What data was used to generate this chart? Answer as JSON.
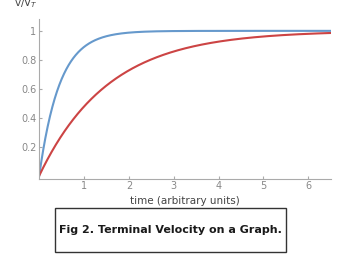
{
  "xlabel": "time (arbitrary units)",
  "xlim": [
    0,
    6.5
  ],
  "ylim": [
    -0.02,
    1.08
  ],
  "xticks": [
    1,
    2,
    3,
    4,
    5,
    6
  ],
  "yticks": [
    0.2,
    0.4,
    0.6,
    0.8,
    1.0
  ],
  "ytick_labels": [
    "0.2",
    "0.4",
    "0.6",
    "0.8",
    "1"
  ],
  "blue_k": 2.2,
  "red_k": 0.65,
  "blue_color": "#6699cc",
  "red_color": "#cc4444",
  "caption": "Fig 2. Terminal Velocity on a Graph.",
  "background_color": "#ffffff",
  "axis_color": "#aaaaaa",
  "tick_color": "#888888",
  "label_fontsize": 7.5,
  "tick_fontsize": 7,
  "caption_fontsize": 8,
  "line_width": 1.5,
  "ylabel_text": "v/V$_T$"
}
